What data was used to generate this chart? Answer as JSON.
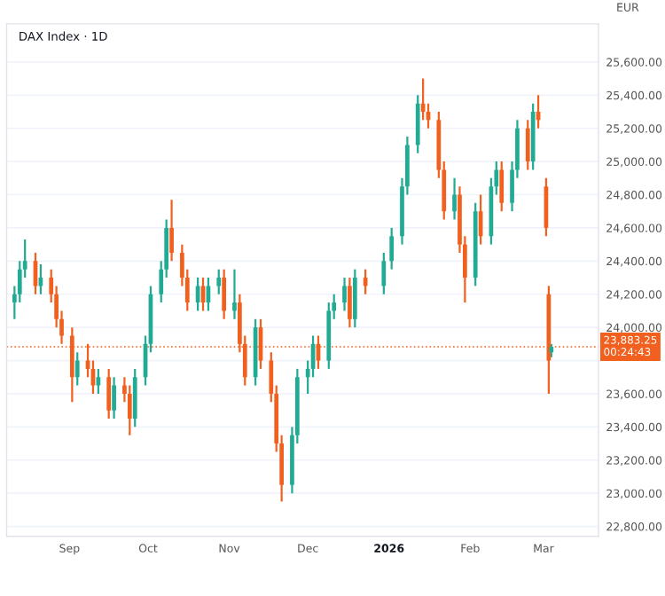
{
  "chart_data": {
    "type": "candlestick",
    "title": "DAX Index · 1D",
    "annotations": [
      "EUR"
    ],
    "x": [
      "2025-08-11",
      "2025-08-13",
      "2025-08-15",
      "2025-08-19",
      "2025-08-21",
      "2025-08-25",
      "2025-08-27",
      "2025-08-29",
      "2025-09-02",
      "2025-09-04",
      "2025-09-08",
      "2025-09-10",
      "2025-09-12",
      "2025-09-16",
      "2025-09-18",
      "2025-09-22",
      "2025-09-24",
      "2025-09-26",
      "2025-09-30",
      "2025-10-02",
      "2025-10-06",
      "2025-10-08",
      "2025-10-10",
      "2025-10-14",
      "2025-10-16",
      "2025-10-20",
      "2025-10-22",
      "2025-10-24",
      "2025-10-28",
      "2025-10-30",
      "2025-11-03",
      "2025-11-05",
      "2025-11-07",
      "2025-11-11",
      "2025-11-13",
      "2025-11-17",
      "2025-11-19",
      "2025-11-21",
      "2025-11-25",
      "2025-11-27",
      "2025-12-01",
      "2025-12-03",
      "2025-12-05",
      "2025-12-09",
      "2025-12-11",
      "2025-12-15",
      "2025-12-17",
      "2025-12-19",
      "2025-12-23",
      "2025-12-30",
      "2026-01-02",
      "2026-01-06",
      "2026-01-08",
      "2026-01-12",
      "2026-01-14",
      "2026-01-16",
      "2026-01-20",
      "2026-01-22",
      "2026-01-26",
      "2026-01-28",
      "2026-01-30",
      "2026-02-03",
      "2026-02-05",
      "2026-02-09",
      "2026-02-11",
      "2026-02-13",
      "2026-02-17",
      "2026-02-19",
      "2026-02-23",
      "2026-02-25",
      "2026-02-27",
      "2026-03-02",
      "2026-03-03",
      "2026-03-04"
    ],
    "ohlc": [
      [
        24150,
        24250,
        24050,
        24200
      ],
      [
        24200,
        24400,
        24150,
        24350
      ],
      [
        24350,
        24530,
        24300,
        24400
      ],
      [
        24400,
        24450,
        24200,
        24250
      ],
      [
        24250,
        24380,
        24200,
        24300
      ],
      [
        24300,
        24350,
        24150,
        24200
      ],
      [
        24200,
        24250,
        24000,
        24050
      ],
      [
        24050,
        24100,
        23900,
        23950
      ],
      [
        23950,
        24000,
        23550,
        23700
      ],
      [
        23700,
        23850,
        23650,
        23800
      ],
      [
        23800,
        23900,
        23700,
        23750
      ],
      [
        23750,
        23800,
        23600,
        23650
      ],
      [
        23650,
        23750,
        23600,
        23700
      ],
      [
        23700,
        23750,
        23450,
        23500
      ],
      [
        23500,
        23700,
        23450,
        23650
      ],
      [
        23650,
        23700,
        23550,
        23600
      ],
      [
        23600,
        23650,
        23350,
        23450
      ],
      [
        23450,
        23750,
        23400,
        23700
      ],
      [
        23700,
        23950,
        23650,
        23900
      ],
      [
        23900,
        24250,
        23850,
        24200
      ],
      [
        24200,
        24400,
        24150,
        24350
      ],
      [
        24350,
        24650,
        24300,
        24600
      ],
      [
        24600,
        24770,
        24400,
        24450
      ],
      [
        24450,
        24500,
        24250,
        24300
      ],
      [
        24300,
        24350,
        24100,
        24150
      ],
      [
        24150,
        24300,
        24100,
        24250
      ],
      [
        24250,
        24300,
        24100,
        24150
      ],
      [
        24150,
        24300,
        24100,
        24250
      ],
      [
        24250,
        24350,
        24200,
        24300
      ],
      [
        24300,
        24350,
        24050,
        24100
      ],
      [
        24100,
        24350,
        24050,
        24150
      ],
      [
        24150,
        24200,
        23850,
        23900
      ],
      [
        23900,
        23950,
        23650,
        23700
      ],
      [
        23700,
        24050,
        23650,
        24000
      ],
      [
        24000,
        24050,
        23750,
        23800
      ],
      [
        23800,
        23850,
        23550,
        23600
      ],
      [
        23600,
        23650,
        23250,
        23300
      ],
      [
        23300,
        23350,
        22950,
        23050
      ],
      [
        23050,
        23400,
        23000,
        23350
      ],
      [
        23350,
        23750,
        23300,
        23700
      ],
      [
        23700,
        23800,
        23600,
        23750
      ],
      [
        23750,
        23950,
        23700,
        23900
      ],
      [
        23900,
        23950,
        23750,
        23800
      ],
      [
        23800,
        24150,
        23750,
        24100
      ],
      [
        24100,
        24200,
        24050,
        24150
      ],
      [
        24150,
        24300,
        24100,
        24250
      ],
      [
        24250,
        24300,
        24000,
        24050
      ],
      [
        24050,
        24350,
        24000,
        24300
      ],
      [
        24300,
        24350,
        24200,
        24250
      ],
      [
        24250,
        24450,
        24200,
        24400
      ],
      [
        24400,
        24600,
        24350,
        24550
      ],
      [
        24550,
        24900,
        24500,
        24850
      ],
      [
        24850,
        25150,
        24800,
        25100
      ],
      [
        25100,
        25400,
        25050,
        25350
      ],
      [
        25350,
        25500,
        25250,
        25300
      ],
      [
        25300,
        25350,
        25200,
        25250
      ],
      [
        25250,
        25300,
        24900,
        24950
      ],
      [
        24950,
        25000,
        24650,
        24700
      ],
      [
        24700,
        24900,
        24650,
        24800
      ],
      [
        24800,
        24850,
        24450,
        24500
      ],
      [
        24500,
        24550,
        24150,
        24300
      ],
      [
        24300,
        24750,
        24250,
        24700
      ],
      [
        24700,
        24800,
        24500,
        24550
      ],
      [
        24550,
        24900,
        24500,
        24850
      ],
      [
        24850,
        25000,
        24800,
        24950
      ],
      [
        24950,
        25000,
        24700,
        24750
      ],
      [
        24750,
        25000,
        24700,
        24950
      ],
      [
        24950,
        25250,
        24900,
        25200
      ],
      [
        25200,
        25250,
        24950,
        25000
      ],
      [
        25000,
        25350,
        24950,
        25300
      ],
      [
        25300,
        25400,
        25200,
        25250
      ],
      [
        24850,
        24900,
        24550,
        24600
      ],
      [
        24200,
        24250,
        23600,
        23800
      ],
      [
        23850,
        23900,
        23820,
        23883.25
      ]
    ],
    "colors": [
      "#22ab94",
      "#22ab94",
      "#22ab94",
      "#f2601f",
      "#22ab94",
      "#f2601f",
      "#f2601f",
      "#f2601f",
      "#f2601f",
      "#22ab94",
      "#f2601f",
      "#f2601f",
      "#22ab94",
      "#f2601f",
      "#22ab94",
      "#f2601f",
      "#f2601f",
      "#22ab94",
      "#22ab94",
      "#22ab94",
      "#22ab94",
      "#22ab94",
      "#f2601f",
      "#f2601f",
      "#f2601f",
      "#22ab94",
      "#f2601f",
      "#22ab94",
      "#22ab94",
      "#f2601f",
      "#22ab94",
      "#f2601f",
      "#f2601f",
      "#22ab94",
      "#f2601f",
      "#f2601f",
      "#f2601f",
      "#f2601f",
      "#22ab94",
      "#22ab94",
      "#22ab94",
      "#22ab94",
      "#f2601f",
      "#22ab94",
      "#22ab94",
      "#22ab94",
      "#f2601f",
      "#22ab94",
      "#f2601f",
      "#22ab94",
      "#22ab94",
      "#22ab94",
      "#22ab94",
      "#22ab94",
      "#f2601f",
      "#f2601f",
      "#f2601f",
      "#f2601f",
      "#22ab94",
      "#f2601f",
      "#f2601f",
      "#22ab94",
      "#f2601f",
      "#22ab94",
      "#22ab94",
      "#f2601f",
      "#22ab94",
      "#22ab94",
      "#f2601f",
      "#22ab94",
      "#f2601f",
      "#f2601f",
      "#f2601f",
      "#22ab94"
    ],
    "xlim": [
      "2025-08-08",
      "2026-03-22"
    ],
    "xticks": [
      {
        "value": "2025-09-01",
        "label": "Sep"
      },
      {
        "value": "2025-10-01",
        "label": "Oct"
      },
      {
        "value": "2025-11-01",
        "label": "Nov"
      },
      {
        "value": "2025-12-01",
        "label": "Dec"
      },
      {
        "value": "2026-01-01",
        "label": "2026"
      },
      {
        "value": "2026-02-01",
        "label": "Feb"
      },
      {
        "value": "2026-03-01",
        "label": "Mar"
      }
    ],
    "ylim": [
      22740,
      25830
    ],
    "yticks": [
      {
        "value": 22800,
        "label": "22,800.00"
      },
      {
        "value": 23000,
        "label": "23,000.00"
      },
      {
        "value": 23200,
        "label": "23,200.00"
      },
      {
        "value": 23400,
        "label": "23,400.00"
      },
      {
        "value": 23600,
        "label": "23,600.00"
      },
      {
        "value": 23800,
        "label": null
      },
      {
        "value": 24000,
        "label": "24,000.00"
      },
      {
        "value": 24200,
        "label": "24,200.00"
      },
      {
        "value": 24400,
        "label": "24,400.00"
      },
      {
        "value": 24600,
        "label": "24,600.00"
      },
      {
        "value": 24800,
        "label": "24,800.00"
      },
      {
        "value": 25000,
        "label": "25,000.00"
      },
      {
        "value": 25200,
        "label": "25,200.00"
      },
      {
        "value": 25400,
        "label": "25,400.00"
      },
      {
        "value": 25600,
        "label": "25,600.00"
      }
    ],
    "grid": "y",
    "ref_lines": [
      {
        "axis": "y",
        "value": 23883.25,
        "label": "23,883.25\n00:24:43",
        "color": "#f2601f",
        "line_style": "dotted"
      }
    ]
  }
}
